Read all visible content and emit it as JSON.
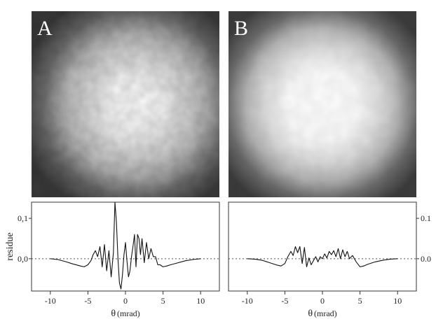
{
  "panels": {
    "a_label": "A",
    "b_label": "B"
  },
  "chart_data": [
    {
      "type": "line",
      "panel": "A",
      "xlabel_symbol": "θ",
      "xlabel_unit": "(mrad)",
      "ylabel": "residue",
      "xlim": [
        -12.5,
        12.5
      ],
      "ylim": [
        -0.08,
        0.14
      ],
      "x_ticks": [
        -10,
        -5,
        0,
        5,
        10
      ],
      "y_ticks": [
        0.0,
        0.1
      ],
      "y_tick_labels": [
        "0,0",
        "0,1"
      ],
      "y_axis_side": "left",
      "reference_line": 0.0,
      "x": [
        -10,
        -9,
        -8,
        -7,
        -6,
        -5.5,
        -5,
        -4.6,
        -4.3,
        -4,
        -3.7,
        -3.4,
        -3.1,
        -2.8,
        -2.5,
        -2.2,
        -1.9,
        -1.6,
        -1.4,
        -1.2,
        -1.0,
        -0.8,
        -0.6,
        -0.4,
        -0.2,
        0,
        0.2,
        0.4,
        0.6,
        0.8,
        1.0,
        1.2,
        1.4,
        1.6,
        1.8,
        2.0,
        2.2,
        2.5,
        2.8,
        3.1,
        3.4,
        3.7,
        4.0,
        4.3,
        4.6,
        5,
        5.5,
        6,
        7,
        8,
        9,
        10
      ],
      "values": [
        0,
        -0.002,
        -0.007,
        -0.013,
        -0.018,
        -0.02,
        -0.015,
        -0.005,
        0.01,
        0.02,
        0.005,
        0.03,
        -0.02,
        0.035,
        -0.03,
        0.02,
        -0.045,
        0.015,
        0.14,
        0.09,
        0.0,
        -0.06,
        -0.075,
        -0.04,
        0.01,
        0.04,
        -0.005,
        -0.045,
        -0.03,
        0.005,
        0.03,
        0.06,
        -0.02,
        0.06,
        0.05,
        0.01,
        0.05,
        -0.01,
        0.04,
        0.0,
        0.025,
        0.005,
        0.005,
        -0.015,
        -0.015,
        -0.02,
        -0.018,
        -0.015,
        -0.01,
        -0.005,
        -0.002,
        0
      ]
    },
    {
      "type": "line",
      "panel": "B",
      "xlabel_symbol": "θ",
      "xlabel_unit": "(mrad)",
      "ylabel": "",
      "xlim": [
        -12.5,
        12.5
      ],
      "ylim": [
        -0.08,
        0.14
      ],
      "x_ticks": [
        -10,
        -5,
        0,
        5,
        10
      ],
      "y_ticks": [
        0.0,
        0.1
      ],
      "y_tick_labels": [
        "0.0",
        "0.1"
      ],
      "y_axis_side": "right",
      "reference_line": 0.0,
      "x": [
        -10,
        -9,
        -8,
        -7,
        -6,
        -5.5,
        -5,
        -4.6,
        -4.2,
        -3.9,
        -3.6,
        -3.3,
        -3.0,
        -2.7,
        -2.4,
        -2.1,
        -1.8,
        -1.5,
        -1.2,
        -0.9,
        -0.6,
        -0.3,
        0,
        0.3,
        0.6,
        0.9,
        1.2,
        1.5,
        1.8,
        2.1,
        2.4,
        2.7,
        3.0,
        3.3,
        3.6,
        4.0,
        4.5,
        5,
        5.5,
        6,
        7,
        8,
        9,
        10
      ],
      "values": [
        0,
        -0.001,
        -0.004,
        -0.01,
        -0.016,
        -0.018,
        -0.012,
        0.005,
        0.018,
        0.008,
        0.03,
        0.015,
        0.03,
        -0.012,
        0.028,
        -0.02,
        0.002,
        -0.015,
        -0.005,
        0.005,
        -0.008,
        0.005,
        0.0,
        0.012,
        0.002,
        0.018,
        0.01,
        0.02,
        0.005,
        0.025,
        0.0,
        0.022,
        0.005,
        0.018,
        0.0,
        0.008,
        -0.008,
        -0.02,
        -0.018,
        -0.014,
        -0.008,
        -0.004,
        -0.001,
        0
      ]
    }
  ]
}
